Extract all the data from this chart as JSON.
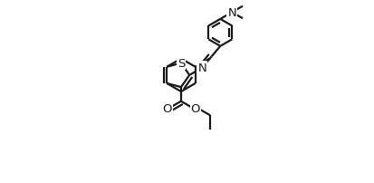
{
  "bg_color": "#ffffff",
  "line_color": "#1a1a1a",
  "line_width": 1.6,
  "figsize": [
    4.13,
    2.03
  ],
  "dpi": 100,
  "xlim": [
    0.0,
    1.0
  ],
  "ylim": [
    0.0,
    1.0
  ]
}
